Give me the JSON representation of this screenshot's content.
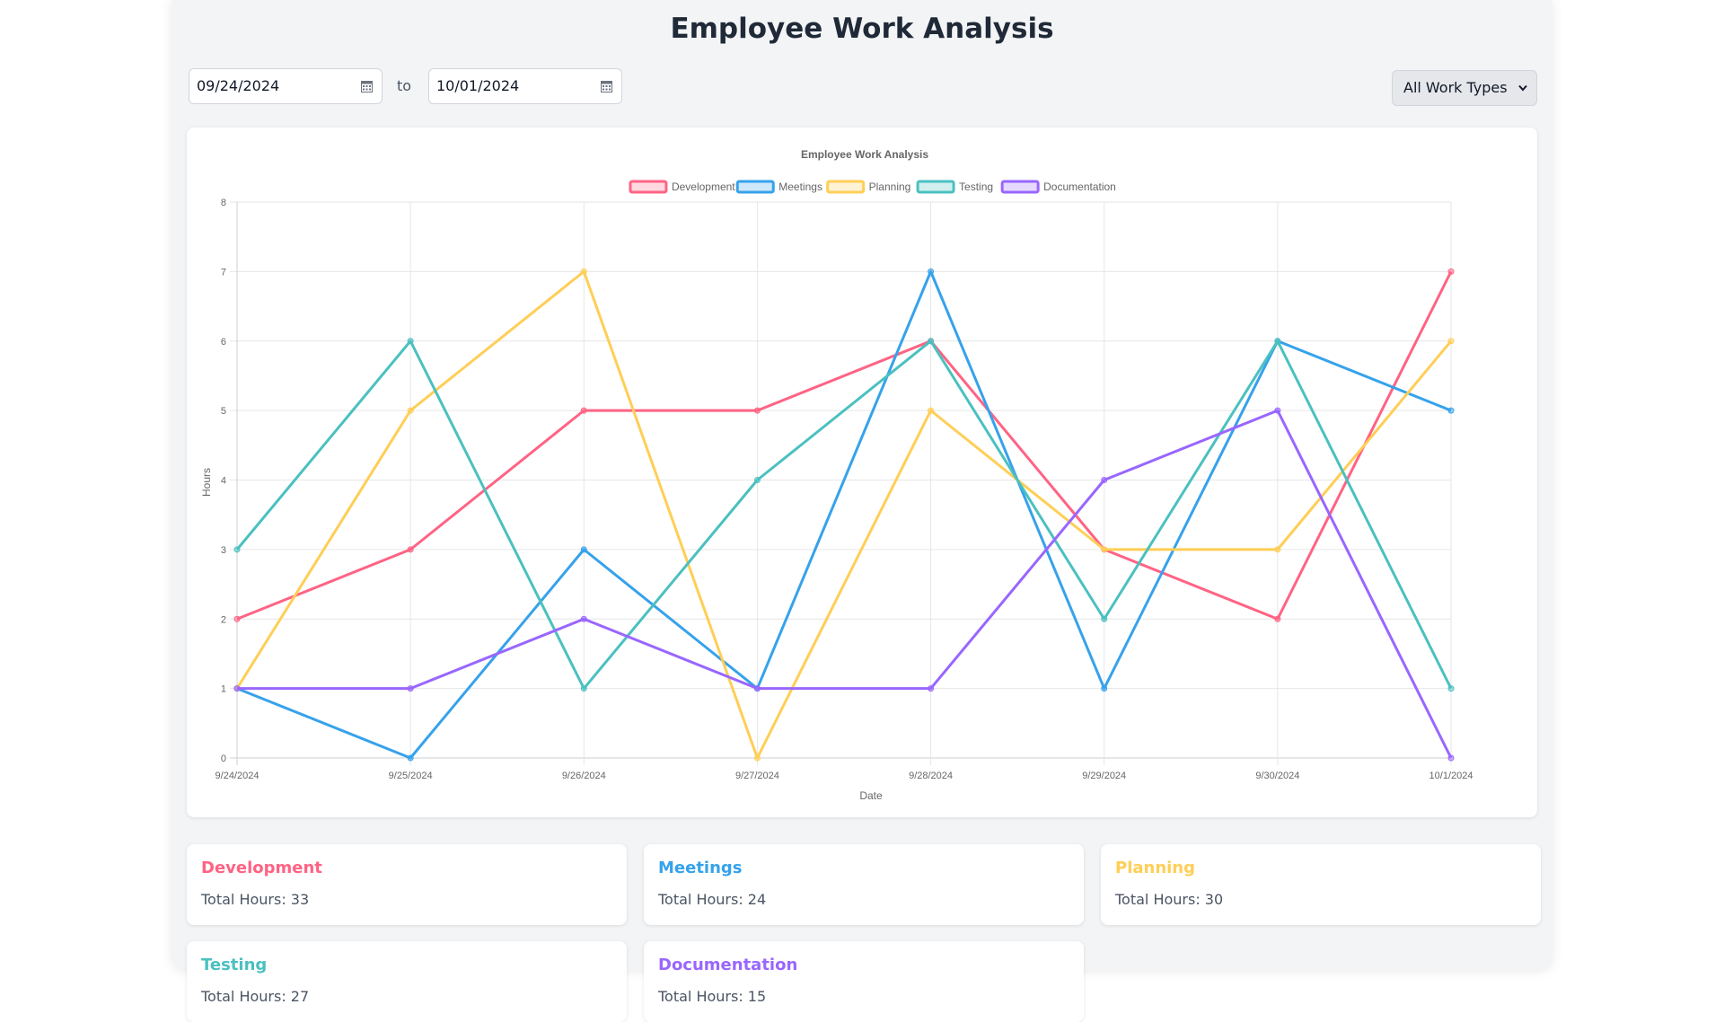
{
  "page": {
    "title": "Employee Work Analysis"
  },
  "filters": {
    "start_date": "09/24/2024",
    "to_label": "to",
    "end_date": "10/01/2024",
    "work_type": "All Work Types"
  },
  "chart_data": {
    "type": "line",
    "title": "Employee Work Analysis",
    "xlabel": "Date",
    "ylabel": "Hours",
    "x": [
      "9/24/2024",
      "9/25/2024",
      "9/26/2024",
      "9/27/2024",
      "9/28/2024",
      "9/29/2024",
      "9/30/2024",
      "10/1/2024"
    ],
    "ylim": [
      0,
      8
    ],
    "yticks": [
      0,
      1,
      2,
      3,
      4,
      5,
      6,
      7,
      8
    ],
    "grid": true,
    "legend": "top",
    "series": [
      {
        "name": "Development",
        "color": "#ff6384",
        "values": [
          2,
          3,
          5,
          5,
          6,
          3,
          2,
          7
        ]
      },
      {
        "name": "Meetings",
        "color": "#36a2eb",
        "values": [
          1,
          0,
          3,
          1,
          7,
          1,
          6,
          5
        ]
      },
      {
        "name": "Planning",
        "color": "#ffce56",
        "values": [
          1,
          5,
          7,
          0,
          5,
          3,
          3,
          6
        ]
      },
      {
        "name": "Testing",
        "color": "#4bc0c0",
        "values": [
          3,
          6,
          1,
          4,
          6,
          2,
          6,
          1
        ]
      },
      {
        "name": "Documentation",
        "color": "#9966ff",
        "values": [
          1,
          1,
          2,
          1,
          1,
          4,
          5,
          0
        ]
      }
    ]
  },
  "summary": [
    {
      "name": "Development",
      "total_label": "Total Hours: 33",
      "color": "#ff6384"
    },
    {
      "name": "Meetings",
      "total_label": "Total Hours: 24",
      "color": "#36a2eb"
    },
    {
      "name": "Planning",
      "total_label": "Total Hours: 30",
      "color": "#ffce56"
    },
    {
      "name": "Testing",
      "total_label": "Total Hours: 27",
      "color": "#4bc0c0"
    },
    {
      "name": "Documentation",
      "total_label": "Total Hours: 15",
      "color": "#9966ff"
    }
  ]
}
